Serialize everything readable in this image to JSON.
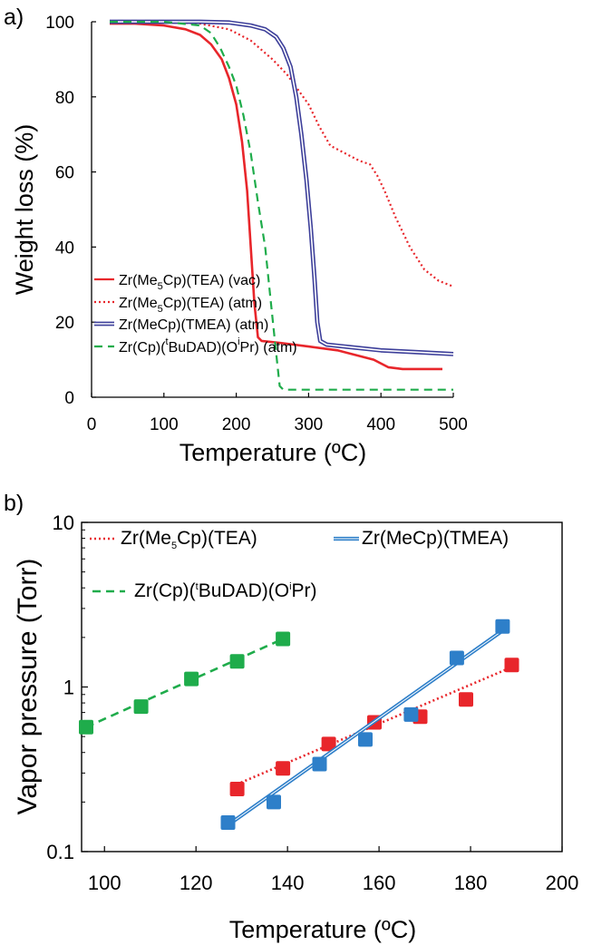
{
  "chart_data": [
    {
      "type": "line",
      "panel_label": "a)",
      "xlabel": "Temperature (ºC)",
      "ylabel": "Weight loss (%)",
      "xlim": [
        0,
        500
      ],
      "ylim": [
        0,
        100
      ],
      "x_ticks": [
        "0",
        "100",
        "200",
        "300",
        "400",
        "500"
      ],
      "y_ticks": [
        "0",
        "20",
        "40",
        "60",
        "80",
        "100"
      ],
      "legend_position": "bottom-left",
      "grid": false,
      "series": [
        {
          "legend": {
            "pre": "Zr(Me",
            "sub": "5",
            "post": "Cp)(TEA) (vac)"
          },
          "color": "#e8262b",
          "style": "solid",
          "points": [
            [
              25,
              99.5
            ],
            [
              60,
              99.5
            ],
            [
              100,
              99
            ],
            [
              130,
              98
            ],
            [
              150,
              96.5
            ],
            [
              165,
              94
            ],
            [
              180,
              90
            ],
            [
              190,
              85
            ],
            [
              200,
              78
            ],
            [
              208,
              68
            ],
            [
              215,
              55
            ],
            [
              220,
              40
            ],
            [
              225,
              25
            ],
            [
              230,
              16
            ],
            [
              235,
              15
            ],
            [
              260,
              14.5
            ],
            [
              300,
              13.5
            ],
            [
              340,
              12.5
            ],
            [
              370,
              11
            ],
            [
              390,
              10
            ],
            [
              410,
              8
            ],
            [
              430,
              7.5
            ],
            [
              460,
              7.5
            ],
            [
              485,
              7.5
            ]
          ]
        },
        {
          "legend": {
            "pre": "Zr(Me",
            "sub": "5",
            "post": "Cp)(TEA) (atm)"
          },
          "color": "#e8262b",
          "style": "dotted",
          "points": [
            [
              30,
              100
            ],
            [
              100,
              100
            ],
            [
              150,
              99.5
            ],
            [
              190,
              98
            ],
            [
              220,
              95
            ],
            [
              250,
              90
            ],
            [
              270,
              86
            ],
            [
              285,
              82
            ],
            [
              300,
              78
            ],
            [
              315,
              72
            ],
            [
              330,
              67
            ],
            [
              350,
              65
            ],
            [
              370,
              63
            ],
            [
              385,
              62
            ],
            [
              395,
              59
            ],
            [
              405,
              55
            ],
            [
              420,
              48
            ],
            [
              440,
              40
            ],
            [
              460,
              34
            ],
            [
              480,
              31
            ],
            [
              500,
              29.5
            ]
          ]
        },
        {
          "legend": {
            "pre": "Zr(MeCp)(TMEA) (atm)"
          },
          "color": "#3d3f9a",
          "style": "double",
          "points": [
            [
              25,
              100
            ],
            [
              100,
              100
            ],
            [
              150,
              100
            ],
            [
              190,
              99.8
            ],
            [
              220,
              99
            ],
            [
              240,
              98
            ],
            [
              255,
              96
            ],
            [
              265,
              93
            ],
            [
              275,
              88
            ],
            [
              283,
              80
            ],
            [
              290,
              70
            ],
            [
              297,
              58
            ],
            [
              303,
              45
            ],
            [
              308,
              32
            ],
            [
              312,
              20
            ],
            [
              316,
              15
            ],
            [
              325,
              14
            ],
            [
              350,
              13.5
            ],
            [
              400,
              12.5
            ],
            [
              450,
              12
            ],
            [
              500,
              11.5
            ]
          ]
        },
        {
          "legend": {
            "pre": "Zr(Cp)(",
            "sup": "t",
            "mid": "BuDAD)(O",
            "sup2": "i",
            "post": "Pr) (atm)"
          },
          "color": "#1fac4b",
          "style": "dashed",
          "points": [
            [
              25,
              100
            ],
            [
              100,
              100
            ],
            [
              150,
              99
            ],
            [
              165,
              97
            ],
            [
              178,
              93
            ],
            [
              190,
              88
            ],
            [
              200,
              83
            ],
            [
              210,
              75
            ],
            [
              220,
              65
            ],
            [
              230,
              52
            ],
            [
              240,
              40
            ],
            [
              248,
              25
            ],
            [
              255,
              12
            ],
            [
              260,
              3
            ],
            [
              265,
              2
            ],
            [
              300,
              2
            ],
            [
              400,
              2
            ],
            [
              500,
              2
            ]
          ]
        }
      ]
    },
    {
      "type": "scatter",
      "panel_label": "b)",
      "xlabel": "Temperature (ºC)",
      "ylabel": "Vapor pressure (Torr)",
      "xlim": [
        95,
        200
      ],
      "ylim": [
        0.1,
        10
      ],
      "yscale": "log",
      "x_ticks": [
        "100",
        "120",
        "140",
        "160",
        "180",
        "200"
      ],
      "y_ticks": [
        "0.1",
        "1",
        "10"
      ],
      "legend_position": "top",
      "grid": false,
      "series": [
        {
          "legend": {
            "pre": "Zr(Me",
            "sub": "5",
            "post": "Cp)(TEA)"
          },
          "color": "#e8262b",
          "fit_style": "dotted",
          "x": [
            129,
            139,
            149,
            159,
            169,
            179,
            189
          ],
          "y": [
            0.24,
            0.32,
            0.45,
            0.61,
            0.66,
            0.84,
            1.36
          ],
          "fit": [
            [
              128,
              0.25
            ],
            [
              189,
              1.32
            ]
          ]
        },
        {
          "legend": {
            "pre": "Zr(MeCp)(TMEA)"
          },
          "color": "#2e7fc9",
          "fit_style": "double",
          "x": [
            127,
            137,
            147,
            157,
            167,
            177,
            187
          ],
          "y": [
            0.15,
            0.2,
            0.34,
            0.48,
            0.68,
            1.5,
            2.33
          ],
          "fit": [
            [
              127,
              0.145
            ],
            [
              187,
              2.2
            ]
          ]
        },
        {
          "legend": {
            "pre": "Zr(Cp)(",
            "sup": "t",
            "mid": "BuDAD)(O",
            "sup2": "i",
            "post": "Pr)"
          },
          "color": "#1fac4b",
          "fit_style": "dashed",
          "x": [
            96,
            108,
            119,
            129,
            139
          ],
          "y": [
            0.57,
            0.76,
            1.12,
            1.43,
            1.96
          ],
          "fit": [
            [
              96,
              0.57
            ],
            [
              139,
              1.96
            ]
          ]
        }
      ]
    }
  ]
}
